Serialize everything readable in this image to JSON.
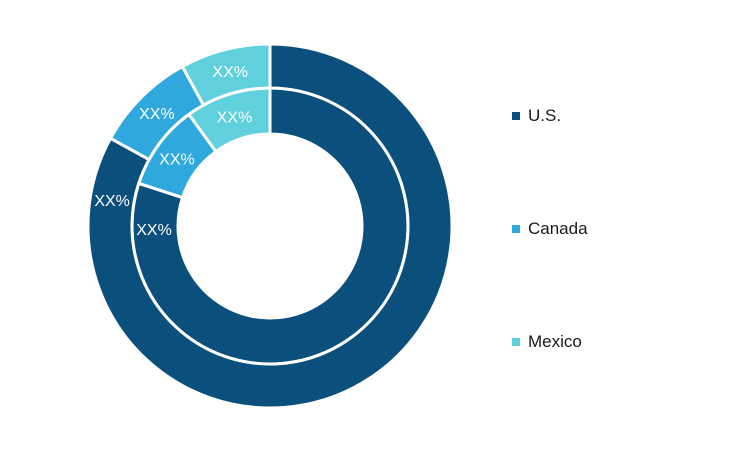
{
  "chart_data": {
    "type": "pie",
    "variant": "nested-donut",
    "categories": [
      "U.S.",
      "Canada",
      "Mexico"
    ],
    "colors": [
      "#0b4f7c",
      "#2fa8de",
      "#5fd0dc"
    ],
    "rings": [
      {
        "name": "",
        "values": [
          80,
          10,
          10
        ],
        "labels": [
          "XX%",
          "XX%",
          "XX%"
        ]
      },
      {
        "name": "",
        "values": [
          83,
          9,
          8
        ],
        "labels": [
          "XX%",
          "XX%",
          "XX%"
        ]
      }
    ],
    "legend_position": "right",
    "title": ""
  },
  "legend": [
    {
      "label": "U.S.",
      "color": "#0b4f7c"
    },
    {
      "label": "Canada",
      "color": "#2fa8de"
    },
    {
      "label": "Mexico",
      "color": "#5fd0dc"
    }
  ]
}
